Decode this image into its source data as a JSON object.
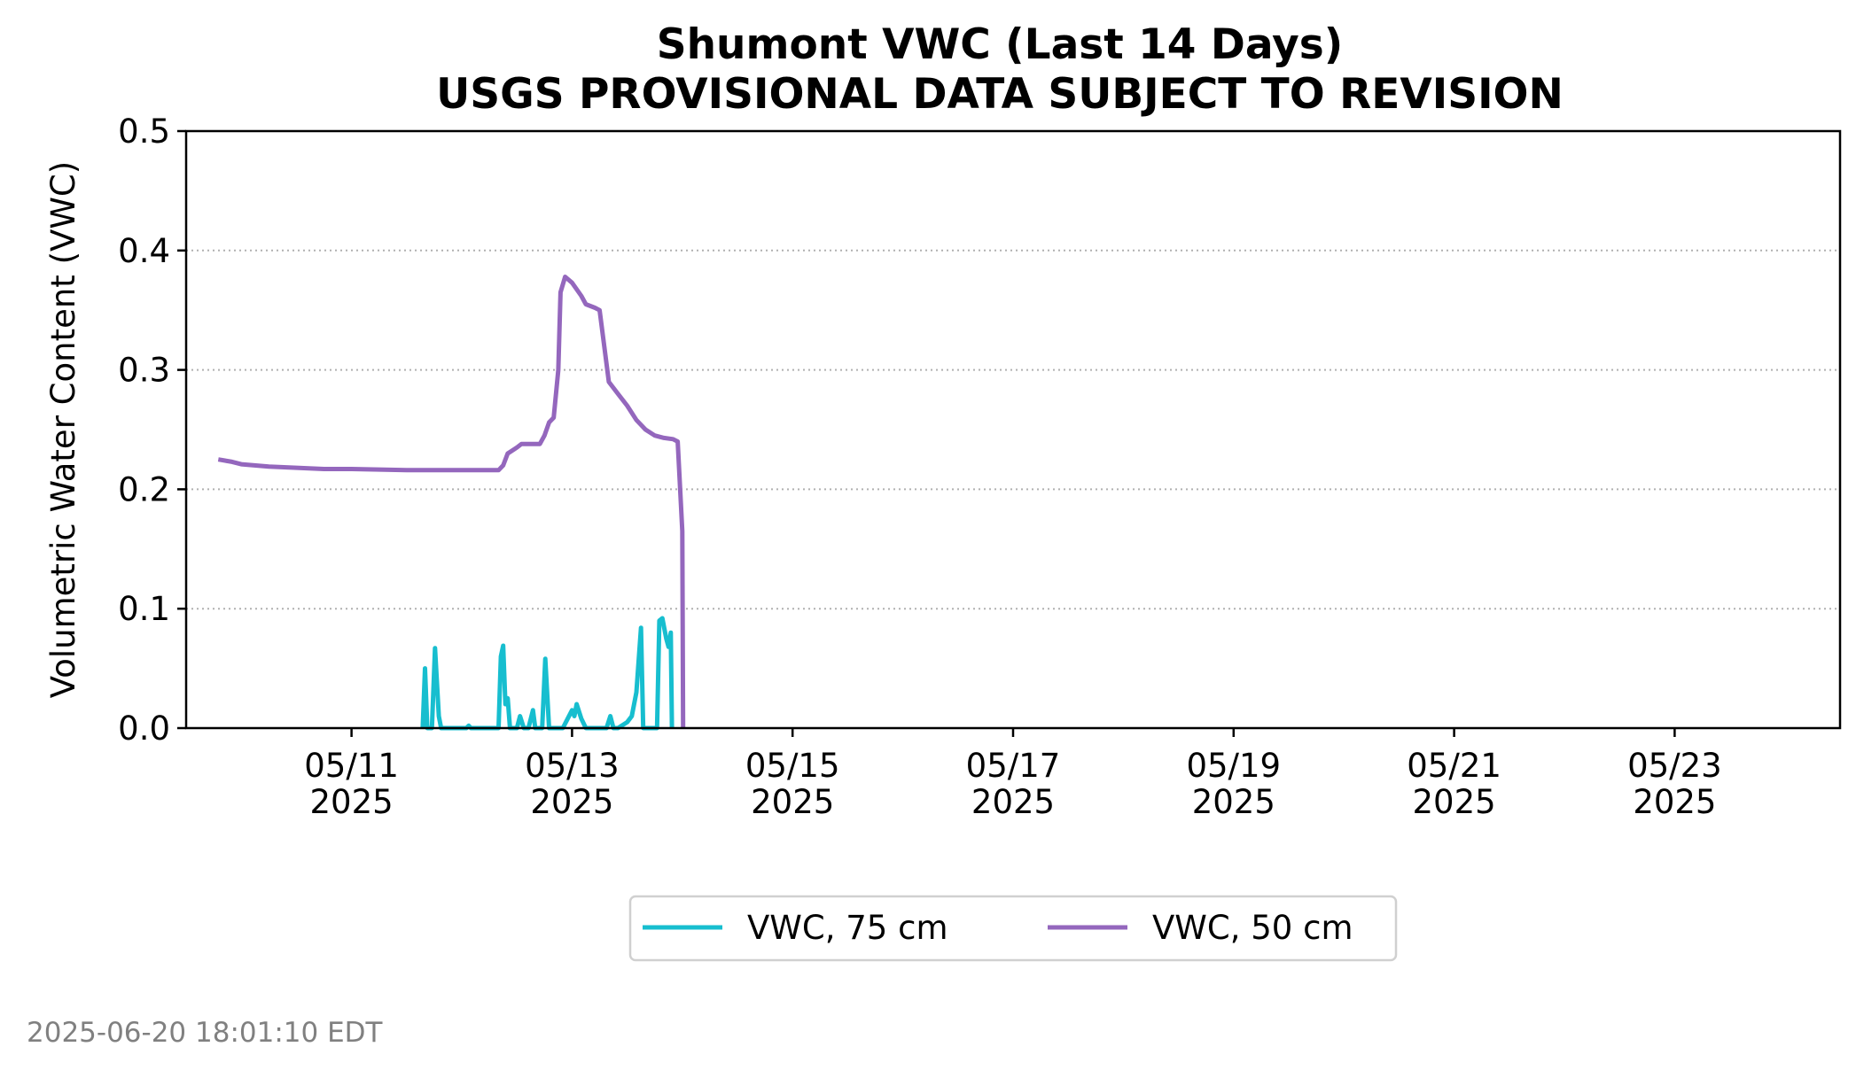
{
  "chart_data": {
    "type": "line",
    "title": "Shumont VWC (Last 14 Days)",
    "subtitle": "USGS PROVISIONAL DATA SUBJECT TO REVISION",
    "ylabel": "Volumetric Water Content (VWC)",
    "ylim": [
      0,
      0.5
    ],
    "xlim": [
      "2025-05-09 12:00",
      "2025-05-24 12:00"
    ],
    "yticks": [
      {
        "value": 0.0,
        "label": "0.0"
      },
      {
        "value": 0.1,
        "label": "0.1"
      },
      {
        "value": 0.2,
        "label": "0.2"
      },
      {
        "value": 0.3,
        "label": "0.3"
      },
      {
        "value": 0.4,
        "label": "0.4"
      },
      {
        "value": 0.5,
        "label": "0.5"
      }
    ],
    "xticks": [
      {
        "date": "2025-05-11",
        "label": "05/11",
        "year": "2025"
      },
      {
        "date": "2025-05-13",
        "label": "05/13",
        "year": "2025"
      },
      {
        "date": "2025-05-15",
        "label": "05/15",
        "year": "2025"
      },
      {
        "date": "2025-05-17",
        "label": "05/17",
        "year": "2025"
      },
      {
        "date": "2025-05-19",
        "label": "05/19",
        "year": "2025"
      },
      {
        "date": "2025-05-21",
        "label": "05/21",
        "year": "2025"
      },
      {
        "date": "2025-05-23",
        "label": "05/23",
        "year": "2025"
      }
    ],
    "grid": "horizontal dotted",
    "legend_position": "bottom-center",
    "series": [
      {
        "name": "VWC, 75 cm",
        "color": "#17becf",
        "points": [
          [
            "2025-05-11 15:30",
            0.0
          ],
          [
            "2025-05-11 16:00",
            0.05
          ],
          [
            "2025-05-11 16:30",
            0.0
          ],
          [
            "2025-05-11 17:30",
            0.0
          ],
          [
            "2025-05-11 18:10",
            0.067
          ],
          [
            "2025-05-11 19:00",
            0.01
          ],
          [
            "2025-05-11 19:30",
            0.0
          ],
          [
            "2025-05-12 01:00",
            0.0
          ],
          [
            "2025-05-12 01:30",
            0.002
          ],
          [
            "2025-05-12 02:00",
            0.0
          ],
          [
            "2025-05-12 08:00",
            0.0
          ],
          [
            "2025-05-12 08:30",
            0.06
          ],
          [
            "2025-05-12 09:00",
            0.069
          ],
          [
            "2025-05-12 09:30",
            0.02
          ],
          [
            "2025-05-12 10:00",
            0.025
          ],
          [
            "2025-05-12 10:30",
            0.0
          ],
          [
            "2025-05-12 12:00",
            0.0
          ],
          [
            "2025-05-12 12:40",
            0.01
          ],
          [
            "2025-05-12 13:30",
            0.0
          ],
          [
            "2025-05-12 14:30",
            0.0
          ],
          [
            "2025-05-12 15:30",
            0.015
          ],
          [
            "2025-05-12 16:00",
            0.0
          ],
          [
            "2025-05-12 17:30",
            0.0
          ],
          [
            "2025-05-12 18:10",
            0.058
          ],
          [
            "2025-05-12 19:00",
            0.0
          ],
          [
            "2025-05-12 22:00",
            0.0
          ],
          [
            "2025-05-13 00:00",
            0.015
          ],
          [
            "2025-05-13 00:30",
            0.01
          ],
          [
            "2025-05-13 01:00",
            0.02
          ],
          [
            "2025-05-13 02:00",
            0.008
          ],
          [
            "2025-05-13 03:00",
            0.0
          ],
          [
            "2025-05-13 07:30",
            0.0
          ],
          [
            "2025-05-13 08:20",
            0.01
          ],
          [
            "2025-05-13 09:00",
            0.0
          ],
          [
            "2025-05-13 10:00",
            0.0
          ],
          [
            "2025-05-13 12:00",
            0.005
          ],
          [
            "2025-05-13 13:00",
            0.01
          ],
          [
            "2025-05-13 14:00",
            0.03
          ],
          [
            "2025-05-13 15:00",
            0.084
          ],
          [
            "2025-05-13 15:30",
            0.0
          ],
          [
            "2025-05-13 18:30",
            0.0
          ],
          [
            "2025-05-13 19:00",
            0.09
          ],
          [
            "2025-05-13 19:40",
            0.092
          ],
          [
            "2025-05-13 20:30",
            0.075
          ],
          [
            "2025-05-13 21:00",
            0.068
          ],
          [
            "2025-05-13 21:30",
            0.08
          ],
          [
            "2025-05-13 21:45",
            0.0
          ]
        ]
      },
      {
        "name": "VWC, 50 cm",
        "color": "#9467bd",
        "points": [
          [
            "2025-05-09 19:00",
            0.225
          ],
          [
            "2025-05-09 22:00",
            0.223
          ],
          [
            "2025-05-10 00:00",
            0.221
          ],
          [
            "2025-05-10 06:00",
            0.219
          ],
          [
            "2025-05-10 12:00",
            0.218
          ],
          [
            "2025-05-10 18:00",
            0.217
          ],
          [
            "2025-05-11 00:00",
            0.217
          ],
          [
            "2025-05-11 12:00",
            0.216
          ],
          [
            "2025-05-12 00:00",
            0.216
          ],
          [
            "2025-05-12 08:00",
            0.216
          ],
          [
            "2025-05-12 09:00",
            0.22
          ],
          [
            "2025-05-12 10:00",
            0.23
          ],
          [
            "2025-05-12 12:00",
            0.235
          ],
          [
            "2025-05-12 13:00",
            0.238
          ],
          [
            "2025-05-12 17:00",
            0.238
          ],
          [
            "2025-05-12 18:00",
            0.245
          ],
          [
            "2025-05-12 19:00",
            0.256
          ],
          [
            "2025-05-12 20:00",
            0.26
          ],
          [
            "2025-05-12 21:00",
            0.3
          ],
          [
            "2025-05-12 21:30",
            0.365
          ],
          [
            "2025-05-12 22:30",
            0.378
          ],
          [
            "2025-05-13 00:00",
            0.373
          ],
          [
            "2025-05-13 02:00",
            0.362
          ],
          [
            "2025-05-13 03:00",
            0.355
          ],
          [
            "2025-05-13 05:00",
            0.352
          ],
          [
            "2025-05-13 06:00",
            0.35
          ],
          [
            "2025-05-13 07:00",
            0.32
          ],
          [
            "2025-05-13 08:00",
            0.29
          ],
          [
            "2025-05-13 10:00",
            0.28
          ],
          [
            "2025-05-13 12:00",
            0.27
          ],
          [
            "2025-05-13 14:00",
            0.258
          ],
          [
            "2025-05-13 16:00",
            0.25
          ],
          [
            "2025-05-13 18:00",
            0.245
          ],
          [
            "2025-05-13 20:00",
            0.243
          ],
          [
            "2025-05-13 22:00",
            0.242
          ],
          [
            "2025-05-13 23:00",
            0.24
          ],
          [
            "2025-05-14 00:00",
            0.165
          ],
          [
            "2025-05-14 00:10",
            0.0
          ]
        ]
      }
    ],
    "timestamp": "2025-06-20 18:01:10 EDT"
  }
}
